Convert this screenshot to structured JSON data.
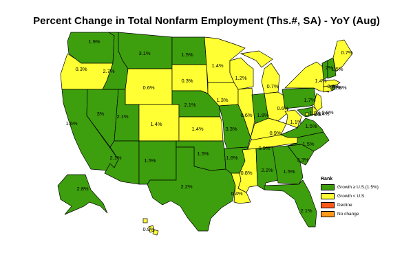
{
  "title": "Percent Change in Total Nonfarm Employment (Ths.#, SA) - YoY (Aug)",
  "colors": {
    "growth_ge_us": "#3d9e0e",
    "growth_lt_us": "#ffff33",
    "decline": "#ff5a1a",
    "no_change": "#ff9a1a"
  },
  "legend": {
    "title": "Rank",
    "items": [
      {
        "label": "Growth ≥ U.S.(1.5%)",
        "color": "#3d9e0e"
      },
      {
        "label": "Growth < U.S.",
        "color": "#ffff33"
      },
      {
        "label": "Decline",
        "color": "#ff5a1a"
      },
      {
        "label": "No change",
        "color": "#ff9a1a"
      }
    ]
  },
  "states": [
    {
      "id": "WA",
      "value": "1.9%"
    },
    {
      "id": "OR",
      "value": "0.3%"
    },
    {
      "id": "CA",
      "value": "1.6%"
    },
    {
      "id": "NV",
      "value": "3%"
    },
    {
      "id": "ID",
      "value": "2.7%"
    },
    {
      "id": "MT",
      "value": "3.1%"
    },
    {
      "id": "WY",
      "value": "0.6%"
    },
    {
      "id": "UT",
      "value": "2.1%"
    },
    {
      "id": "AZ",
      "value": "2.1%"
    },
    {
      "id": "CO",
      "value": "1.4%"
    },
    {
      "id": "NM",
      "value": "1.5%"
    },
    {
      "id": "ND",
      "value": "1.5%"
    },
    {
      "id": "SD",
      "value": "0.3%"
    },
    {
      "id": "NE",
      "value": "2.1%"
    },
    {
      "id": "KS",
      "value": "1.4%"
    },
    {
      "id": "OK",
      "value": "1.5%"
    },
    {
      "id": "TX",
      "value": "2.2%"
    },
    {
      "id": "MN",
      "value": "1.4%"
    },
    {
      "id": "IA",
      "value": "1.3%"
    },
    {
      "id": "MO",
      "value": "3.3%"
    },
    {
      "id": "AR",
      "value": "1.6%"
    },
    {
      "id": "LA",
      "value": "0.4%"
    },
    {
      "id": "WI",
      "value": "1.2%"
    },
    {
      "id": "IL",
      "value": "0.6%"
    },
    {
      "id": "MI",
      "value": "0.7%"
    },
    {
      "id": "IN",
      "value": "1.8%"
    },
    {
      "id": "OH",
      "value": "0.6%"
    },
    {
      "id": "KY",
      "value": "0.9%"
    },
    {
      "id": "TN",
      "value": "0.9%"
    },
    {
      "id": "MS",
      "value": "0.8%"
    },
    {
      "id": "AL",
      "value": "2.2%"
    },
    {
      "id": "GA",
      "value": "1.5%"
    },
    {
      "id": "FL",
      "value": "2.1%"
    },
    {
      "id": "SC",
      "value": "3.3%"
    },
    {
      "id": "NC",
      "value": "1.5%"
    },
    {
      "id": "VA",
      "value": "1.5%"
    },
    {
      "id": "WV",
      "value": "1.1%"
    },
    {
      "id": "PA",
      "value": "1.7%"
    },
    {
      "id": "NY",
      "value": "1.4%"
    },
    {
      "id": "VT",
      "value": "2%"
    },
    {
      "id": "NH",
      "value": "1.5%"
    },
    {
      "id": "ME",
      "value": "0.7%"
    },
    {
      "id": "MA",
      "value": "0.8%"
    },
    {
      "id": "RI",
      "value": "1.8%"
    },
    {
      "id": "CT",
      "value": "1.1%"
    },
    {
      "id": "NJ",
      "value": "0.9%"
    },
    {
      "id": "DE",
      "value": "1.4%"
    },
    {
      "id": "MD",
      "value": "1.9%"
    },
    {
      "id": "DC",
      "value": "1%"
    },
    {
      "id": "AK",
      "value": "2.8%"
    },
    {
      "id": "HI",
      "value": "0.9%"
    }
  ]
}
